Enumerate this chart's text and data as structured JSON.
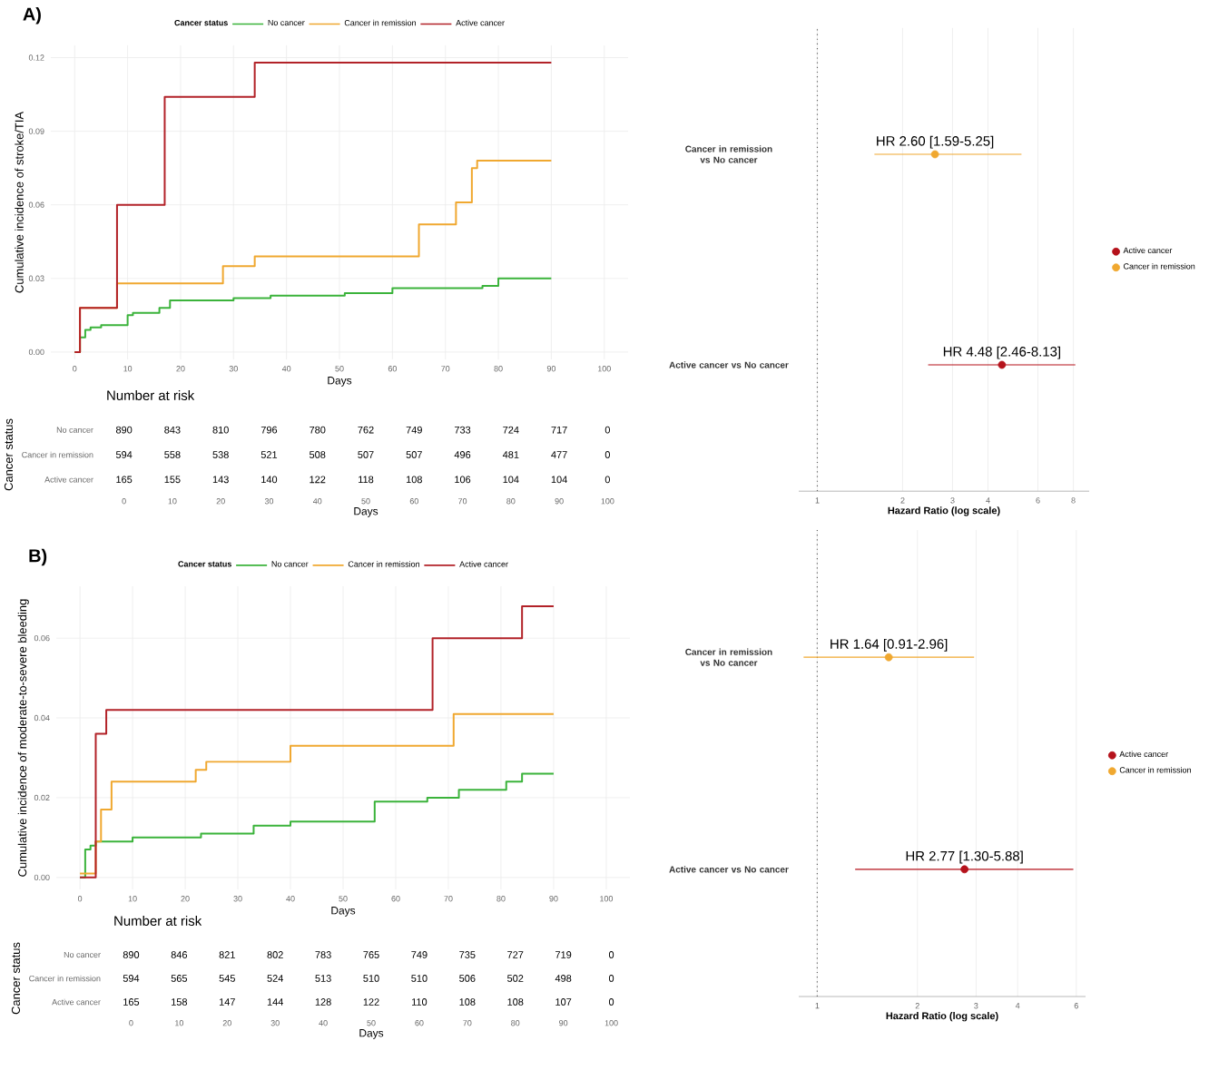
{
  "chart_data": [
    {
      "type": "step",
      "title": "A)",
      "xlabel": "Days",
      "ylabel": "Cumulative incidence of stroke/TIA",
      "legend_title": "Cancer status",
      "legend": "top",
      "grid": true,
      "xlim": [
        -4.5,
        104.5
      ],
      "ylim": [
        -0.003,
        0.125
      ],
      "xticks": [
        0,
        10,
        20,
        30,
        40,
        50,
        60,
        70,
        80,
        90,
        100
      ],
      "yticks": [
        {
          "value": 0,
          "label": "0.00"
        },
        {
          "value": 0.03,
          "label": "0.03"
        },
        {
          "value": 0.06,
          "label": "0.06"
        },
        {
          "value": 0.09,
          "label": "0.09"
        },
        {
          "value": 0.12,
          "label": "0.12"
        }
      ],
      "series": [
        {
          "name": "No cancer",
          "color": "#3bb33b",
          "x": [
            0,
            1,
            2,
            3,
            5,
            10,
            11,
            16,
            18,
            30,
            37,
            51,
            60,
            77,
            80,
            90
          ],
          "values": [
            0,
            0.006,
            0.009,
            0.01,
            0.011,
            0.015,
            0.016,
            0.018,
            0.021,
            0.022,
            0.023,
            0.024,
            0.026,
            0.027,
            0.03,
            0.03
          ]
        },
        {
          "name": "Cancer in remission",
          "color": "#f0a830",
          "x": [
            0,
            1,
            8,
            28,
            34,
            65,
            72,
            75,
            76,
            90
          ],
          "values": [
            0,
            0.018,
            0.028,
            0.035,
            0.039,
            0.052,
            0.061,
            0.075,
            0.078,
            0.078
          ]
        },
        {
          "name": "Active cancer",
          "color": "#b22228",
          "x": [
            0,
            1,
            8,
            17,
            34,
            90
          ],
          "values": [
            0,
            0.018,
            0.06,
            0.104,
            0.118,
            0.118
          ]
        }
      ]
    },
    {
      "type": "heatmap",
      "title": "Number at risk",
      "xlabel": "Days",
      "ylabel": "Cancer status",
      "data_labels": true,
      "categories": [
        "0",
        "10",
        "20",
        "30",
        "40",
        "50",
        "60",
        "70",
        "80",
        "90",
        "100"
      ],
      "y_categories": [
        "No cancer",
        "Cancer in remission",
        "Active cancer"
      ],
      "cells": [
        [
          890,
          843,
          810,
          796,
          780,
          762,
          749,
          733,
          724,
          717,
          0
        ],
        [
          594,
          558,
          538,
          521,
          508,
          507,
          507,
          496,
          481,
          477,
          0
        ],
        [
          165,
          155,
          143,
          140,
          122,
          118,
          108,
          106,
          104,
          104,
          0
        ]
      ]
    },
    {
      "type": "scatter",
      "orientation": "horizontal",
      "xlabel": "Hazard Ratio (log scale)",
      "log": "x",
      "grid": "x",
      "legend": "right",
      "categories": [
        "Cancer in remission vs No cancer",
        "Active cancer vs No cancer"
      ],
      "xlim": [
        0.86,
        9.1
      ],
      "xticks": [
        1,
        2,
        3,
        4,
        6,
        8
      ],
      "ref_lines": [
        {
          "axis": "x",
          "value": 1,
          "line_style": "dotted"
        }
      ],
      "series": [
        {
          "name": "Active cancer",
          "color": "#b5121b",
          "values": [
            null,
            4.48
          ],
          "errors": [
            null,
            [
              2.46,
              8.13
            ]
          ],
          "value_labels": [
            null,
            "HR 4.48 [2.46-8.13]"
          ]
        },
        {
          "name": "Cancer in remission",
          "color": "#f0a830",
          "values": [
            2.6,
            null
          ],
          "errors": [
            [
              1.59,
              5.25
            ],
            null
          ],
          "value_labels": [
            "HR 2.60 [1.59-5.25]",
            null
          ]
        }
      ]
    },
    {
      "type": "step",
      "title": "B)",
      "xlabel": "Days",
      "ylabel": "Cumulative incidence of moderate-to-severe bleeding",
      "legend_title": "Cancer status",
      "legend": "top",
      "grid": true,
      "xlim": [
        -4.5,
        104.5
      ],
      "ylim": [
        -0.003,
        0.073
      ],
      "xticks": [
        0,
        10,
        20,
        30,
        40,
        50,
        60,
        70,
        80,
        90,
        100
      ],
      "yticks": [
        {
          "value": 0,
          "label": "0.00"
        },
        {
          "value": 0.02,
          "label": "0.02"
        },
        {
          "value": 0.04,
          "label": "0.04"
        },
        {
          "value": 0.06,
          "label": "0.06"
        }
      ],
      "series": [
        {
          "name": "No cancer",
          "color": "#3bb33b",
          "x": [
            0,
            1,
            2,
            3,
            10,
            23,
            33,
            40,
            56,
            66,
            72,
            81,
            84,
            90
          ],
          "values": [
            0,
            0.007,
            0.008,
            0.009,
            0.01,
            0.011,
            0.013,
            0.014,
            0.019,
            0.02,
            0.022,
            0.024,
            0.026,
            0.026
          ]
        },
        {
          "name": "Cancer in remission",
          "color": "#f0a830",
          "x": [
            0,
            3,
            4,
            6,
            22,
            24,
            40,
            71,
            90
          ],
          "values": [
            0.001,
            0.009,
            0.017,
            0.024,
            0.027,
            0.029,
            0.033,
            0.041,
            0.041
          ]
        },
        {
          "name": "Active cancer",
          "color": "#b22228",
          "x": [
            0,
            3,
            5,
            67,
            84,
            90
          ],
          "values": [
            0,
            0.036,
            0.042,
            0.06,
            0.068,
            0.068
          ]
        }
      ]
    },
    {
      "type": "heatmap",
      "title": "Number at risk",
      "xlabel": "Days",
      "ylabel": "Cancer status",
      "data_labels": true,
      "categories": [
        "0",
        "10",
        "20",
        "30",
        "40",
        "50",
        "60",
        "70",
        "80",
        "90",
        "100"
      ],
      "y_categories": [
        "No cancer",
        "Cancer in remission",
        "Active cancer"
      ],
      "cells": [
        [
          890,
          846,
          821,
          802,
          783,
          765,
          749,
          735,
          727,
          719,
          0
        ],
        [
          594,
          565,
          545,
          524,
          513,
          510,
          510,
          506,
          502,
          498,
          0
        ],
        [
          165,
          158,
          147,
          144,
          128,
          122,
          110,
          108,
          108,
          107,
          0
        ]
      ]
    },
    {
      "type": "scatter",
      "orientation": "horizontal",
      "xlabel": "Hazard Ratio (log scale)",
      "log": "x",
      "grid": "x",
      "legend": "right",
      "categories": [
        "Cancer in remission vs No cancer",
        "Active cancer vs No cancer"
      ],
      "xlim": [
        0.88,
        6.4
      ],
      "xticks": [
        1,
        2,
        3,
        4,
        6
      ],
      "ref_lines": [
        {
          "axis": "x",
          "value": 1,
          "line_style": "dotted"
        }
      ],
      "series": [
        {
          "name": "Active cancer",
          "color": "#b5121b",
          "values": [
            null,
            2.77
          ],
          "errors": [
            null,
            [
              1.3,
              5.88
            ]
          ],
          "value_labels": [
            null,
            "HR 2.77 [1.30-5.88]"
          ]
        },
        {
          "name": "Cancer in remission",
          "color": "#f0a830",
          "values": [
            1.64,
            null
          ],
          "errors": [
            [
              0.91,
              2.96
            ],
            null
          ],
          "value_labels": [
            "HR 1.64 [0.91-2.96]",
            null
          ]
        }
      ]
    }
  ]
}
